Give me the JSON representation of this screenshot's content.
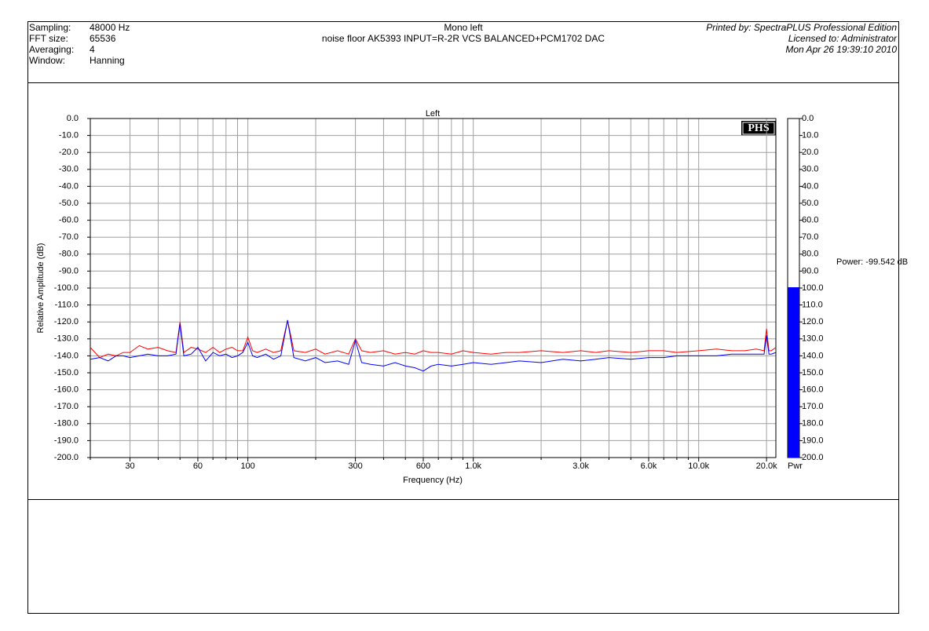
{
  "header": {
    "rows": [
      [
        "Sampling:",
        "48000 Hz"
      ],
      [
        "FFT size:",
        "65536"
      ],
      [
        "Averaging:",
        "4"
      ],
      [
        "Window:",
        "Hanning"
      ]
    ],
    "title": "Mono left",
    "subtitle": "noise floor AK5393 INPUT=R-2R VCS BALANCED+PCM1702 DAC",
    "right": [
      "Printed by: SpectraPLUS Professional Edition",
      "Licensed to: Administrator",
      "Mon Apr 26 19:39:10 2010"
    ]
  },
  "logo": "PHS",
  "chart_data": [
    {
      "type": "line",
      "title": "Left",
      "xlabel": "Frequency (Hz)",
      "ylabel": "Relative Amplitude (dB)",
      "xscale": "log",
      "grid": true,
      "x": [
        20,
        22,
        24,
        26,
        28,
        30,
        33,
        36,
        40,
        44,
        48,
        50,
        52,
        56,
        60,
        65,
        70,
        75,
        80,
        85,
        90,
        95,
        100,
        105,
        110,
        120,
        130,
        140,
        150,
        160,
        180,
        200,
        220,
        250,
        280,
        300,
        320,
        350,
        400,
        450,
        500,
        550,
        600,
        650,
        700,
        800,
        900,
        1000,
        1200,
        1400,
        1600,
        2000,
        2500,
        3000,
        3500,
        4000,
        5000,
        6000,
        7000,
        8000,
        10000,
        12000,
        14000,
        16000,
        18000,
        19500,
        20000,
        20500,
        21000,
        22000
      ],
      "series": [
        {
          "color": "#ff0000",
          "values": [
            -135,
            -141,
            -139,
            -140,
            -138,
            -138,
            -134,
            -136,
            -135,
            -137,
            -138,
            -120,
            -138,
            -135,
            -136,
            -138,
            -135,
            -138,
            -136,
            -135,
            -137,
            -137,
            -129,
            -137,
            -138,
            -136,
            -138,
            -137,
            -119,
            -137,
            -138,
            -136,
            -139,
            -137,
            -139,
            -130,
            -137,
            -138,
            -137,
            -139,
            -138,
            -139,
            -137,
            -138,
            -138,
            -139,
            -137,
            -138,
            -139,
            -138,
            -138,
            -137,
            -138,
            -137,
            -138,
            -137,
            -138,
            -137,
            -137,
            -138,
            -137,
            -136,
            -137,
            -137,
            -136,
            -137,
            -124,
            -137,
            -137,
            -135
          ]
        },
        {
          "color": "#0000ff",
          "values": [
            -142,
            -141,
            -143,
            -140,
            -140,
            -141,
            -140,
            -139,
            -140,
            -140,
            -139,
            -121,
            -140,
            -139,
            -135,
            -143,
            -138,
            -140,
            -139,
            -141,
            -140,
            -138,
            -132,
            -140,
            -141,
            -139,
            -142,
            -140,
            -119,
            -141,
            -143,
            -141,
            -144,
            -143,
            -145,
            -131,
            -144,
            -145,
            -146,
            -144,
            -146,
            -147,
            -149,
            -146,
            -145,
            -146,
            -145,
            -144,
            -145,
            -144,
            -143,
            -144,
            -142,
            -143,
            -142,
            -141,
            -142,
            -141,
            -141,
            -140,
            -140,
            -140,
            -139,
            -139,
            -139,
            -139,
            -128,
            -139,
            -139,
            -138
          ]
        }
      ],
      "xlim": [
        20,
        22000
      ],
      "xticks": [
        30,
        60,
        100,
        300,
        600,
        {
          "value": 1000,
          "label": "1.0k"
        },
        {
          "value": 3000,
          "label": "3.0k"
        },
        {
          "value": 6000,
          "label": "6.0k"
        },
        {
          "value": 10000,
          "label": "10.0k"
        },
        {
          "value": 20000,
          "label": "20.0k"
        }
      ],
      "minor_xticks": [
        20,
        40,
        50,
        70,
        80,
        90,
        200,
        400,
        500,
        700,
        800,
        900,
        2000,
        4000,
        5000,
        7000,
        8000,
        9000
      ],
      "ylim": [
        -200,
        0
      ],
      "yticks": [
        {
          "value": 0,
          "label": "0.0"
        },
        {
          "value": -10,
          "label": "-10.0"
        },
        {
          "value": -20,
          "label": "-20.0"
        },
        {
          "value": -30,
          "label": "-30.0"
        },
        {
          "value": -40,
          "label": "-40.0"
        },
        {
          "value": -50,
          "label": "-50.0"
        },
        {
          "value": -60,
          "label": "-60.0"
        },
        {
          "value": -70,
          "label": "-70.0"
        },
        {
          "value": -80,
          "label": "-80.0"
        },
        {
          "value": -90,
          "label": "-90.0"
        },
        {
          "value": -100,
          "label": "-100.0"
        },
        {
          "value": -110,
          "label": "-110.0"
        },
        {
          "value": -120,
          "label": "-120.0"
        },
        {
          "value": -130,
          "label": "-130.0"
        },
        {
          "value": -140,
          "label": "-140.0"
        },
        {
          "value": -150,
          "label": "-150.0"
        },
        {
          "value": -160,
          "label": "-160.0"
        },
        {
          "value": -170,
          "label": "-170.0"
        },
        {
          "value": -180,
          "label": "-180.0"
        },
        {
          "value": -190,
          "label": "-190.0"
        },
        {
          "value": -200,
          "label": "-200.0"
        }
      ]
    },
    {
      "type": "bar",
      "categories": [
        "Pwr"
      ],
      "values": [
        -99.542
      ],
      "value_labels": [
        "Power: -99.542 dB"
      ],
      "color": "#0000ff",
      "ylim": [
        -200,
        0
      ],
      "yticks": [
        {
          "value": 0,
          "label": "0.0"
        },
        {
          "value": -10,
          "label": "10.0"
        },
        {
          "value": -20,
          "label": "20.0"
        },
        {
          "value": -30,
          "label": "30.0"
        },
        {
          "value": -40,
          "label": "40.0"
        },
        {
          "value": -50,
          "label": "50.0"
        },
        {
          "value": -60,
          "label": "60.0"
        },
        {
          "value": -70,
          "label": "70.0"
        },
        {
          "value": -80,
          "label": "80.0"
        },
        {
          "value": -90,
          "label": "90.0"
        },
        {
          "value": -100,
          "label": "100.0"
        },
        {
          "value": -110,
          "label": "110.0"
        },
        {
          "value": -120,
          "label": "120.0"
        },
        {
          "value": -130,
          "label": "130.0"
        },
        {
          "value": -140,
          "label": "140.0"
        },
        {
          "value": -150,
          "label": "150.0"
        },
        {
          "value": -160,
          "label": "160.0"
        },
        {
          "value": -170,
          "label": "170.0"
        },
        {
          "value": -180,
          "label": "180.0"
        },
        {
          "value": -190,
          "label": "190.0"
        },
        {
          "value": -200,
          "label": "200.0"
        }
      ]
    }
  ]
}
